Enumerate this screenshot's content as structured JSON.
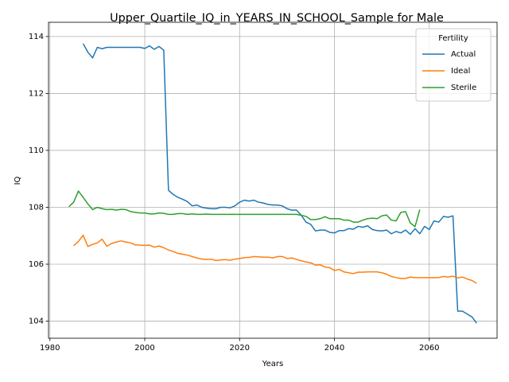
{
  "chart_data": {
    "type": "line",
    "title": "Upper_Quartile_IQ_in_YEARS_IN_SCHOOL_Sample for Male",
    "x_label": "Years",
    "y_label": "IQ",
    "legend_title": "Fertility",
    "legend": "upper right",
    "grid": true,
    "xlim": [
      1979.7,
      2074.3
    ],
    "ylim": [
      103.4,
      114.5
    ],
    "xticks": [
      1980,
      2000,
      2020,
      2040,
      2060
    ],
    "yticks": [
      104,
      106,
      108,
      110,
      112,
      114
    ],
    "x": [
      1984,
      1985,
      1986,
      1987,
      1988,
      1989,
      1990,
      1991,
      1992,
      1993,
      1994,
      1995,
      1996,
      1997,
      1998,
      1999,
      2000,
      2001,
      2002,
      2003,
      2004,
      2005,
      2006,
      2007,
      2008,
      2009,
      2010,
      2011,
      2012,
      2013,
      2014,
      2015,
      2016,
      2017,
      2018,
      2019,
      2020,
      2021,
      2022,
      2023,
      2024,
      2025,
      2026,
      2027,
      2028,
      2029,
      2030,
      2031,
      2032,
      2033,
      2034,
      2035,
      2036,
      2037,
      2038,
      2039,
      2040,
      2041,
      2042,
      2043,
      2044,
      2045,
      2046,
      2047,
      2048,
      2049,
      2050,
      2051,
      2052,
      2053,
      2054,
      2055,
      2056,
      2057,
      2058,
      2059,
      2060,
      2061,
      2062,
      2063,
      2064,
      2065,
      2066,
      2067,
      2068,
      2069,
      2070
    ],
    "series": [
      {
        "name": "Actual",
        "color": "#1f77b4",
        "values": [
          null,
          null,
          null,
          113.75,
          113.45,
          113.25,
          113.62,
          113.57,
          113.62,
          113.62,
          113.62,
          113.62,
          113.62,
          113.62,
          113.62,
          113.62,
          113.58,
          113.67,
          113.55,
          113.65,
          113.52,
          108.6,
          108.45,
          108.35,
          108.28,
          108.2,
          108.05,
          108.08,
          108.0,
          107.97,
          107.95,
          107.95,
          108.0,
          108.0,
          107.98,
          108.05,
          108.18,
          108.25,
          108.22,
          108.25,
          108.18,
          108.15,
          108.1,
          108.08,
          108.08,
          108.05,
          107.95,
          107.9,
          107.9,
          107.72,
          107.48,
          107.4,
          107.17,
          107.2,
          107.2,
          107.12,
          107.1,
          107.18,
          107.18,
          107.25,
          107.23,
          107.33,
          107.3,
          107.35,
          107.22,
          107.18,
          107.17,
          107.2,
          107.07,
          107.15,
          107.1,
          107.2,
          107.05,
          107.25,
          107.07,
          107.33,
          107.22,
          107.52,
          107.48,
          107.68,
          107.65,
          107.7,
          104.35,
          104.35,
          104.25,
          104.15,
          103.93
        ]
      },
      {
        "name": "Ideal",
        "color": "#ff7f0e",
        "values": [
          null,
          106.65,
          106.8,
          107.02,
          106.62,
          106.7,
          106.75,
          106.88,
          106.63,
          106.73,
          106.78,
          106.82,
          106.78,
          106.75,
          106.68,
          106.67,
          106.66,
          106.67,
          106.6,
          106.64,
          106.58,
          106.5,
          106.45,
          106.38,
          106.35,
          106.32,
          106.27,
          106.22,
          106.18,
          106.17,
          106.18,
          106.13,
          106.15,
          106.16,
          106.14,
          106.18,
          106.2,
          106.23,
          106.24,
          106.27,
          106.26,
          106.25,
          106.25,
          106.22,
          106.27,
          106.27,
          106.2,
          106.22,
          106.17,
          106.12,
          106.08,
          106.05,
          105.97,
          105.98,
          105.9,
          105.88,
          105.78,
          105.82,
          105.73,
          105.7,
          105.67,
          105.72,
          105.72,
          105.73,
          105.73,
          105.73,
          105.7,
          105.65,
          105.57,
          105.53,
          105.5,
          105.5,
          105.55,
          105.53,
          105.53,
          105.53,
          105.53,
          105.53,
          105.53,
          105.57,
          105.55,
          105.58,
          105.52,
          105.55,
          105.48,
          105.43,
          105.33
        ]
      },
      {
        "name": "Sterile",
        "color": "#2ca02c",
        "values": [
          108.02,
          108.18,
          108.57,
          108.35,
          108.12,
          107.92,
          108.0,
          107.95,
          107.92,
          107.93,
          107.9,
          107.93,
          107.92,
          107.85,
          107.82,
          107.8,
          107.8,
          107.77,
          107.77,
          107.8,
          107.79,
          107.75,
          107.75,
          107.78,
          107.78,
          107.75,
          107.77,
          107.75,
          107.75,
          107.76,
          107.75,
          107.75,
          107.75,
          107.75,
          107.75,
          107.75,
          107.75,
          107.75,
          107.75,
          107.75,
          107.75,
          107.75,
          107.75,
          107.75,
          107.75,
          107.75,
          107.75,
          107.75,
          107.75,
          107.72,
          107.68,
          107.57,
          107.57,
          107.6,
          107.67,
          107.6,
          107.6,
          107.6,
          107.55,
          107.55,
          107.48,
          107.48,
          107.55,
          107.6,
          107.62,
          107.6,
          107.7,
          107.73,
          107.55,
          107.52,
          107.82,
          107.85,
          107.45,
          107.32,
          107.92,
          null,
          null,
          null,
          null,
          null,
          null,
          null,
          null,
          null,
          null,
          null,
          null
        ]
      }
    ]
  }
}
